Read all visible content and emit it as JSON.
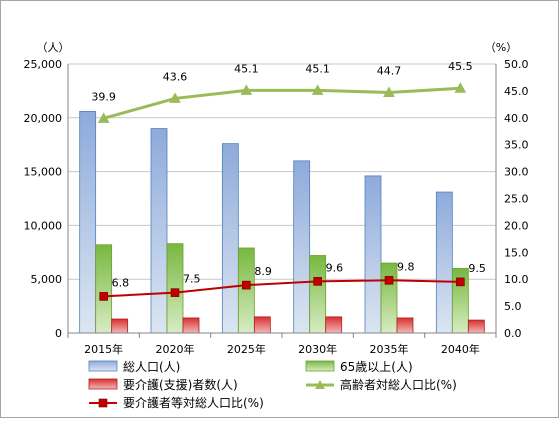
{
  "chart_data": {
    "type": "bar",
    "categories": [
      "2015年",
      "2020年",
      "2025年",
      "2030年",
      "2035年",
      "2040年"
    ],
    "left_axis": {
      "unit": "（人）",
      "ylim": [
        0,
        25000
      ],
      "ticks": [
        "0",
        "5,000",
        "10,000",
        "15,000",
        "20,000",
        "25,000"
      ],
      "tick_values": [
        0,
        5000,
        10000,
        15000,
        20000,
        25000
      ]
    },
    "right_axis": {
      "unit": "（%）",
      "ylim": [
        0,
        50
      ],
      "ticks": [
        "0.0",
        "5.0",
        "10.0",
        "15.0",
        "20.0",
        "25.0",
        "30.0",
        "35.0",
        "40.0",
        "45.0",
        "50.0"
      ],
      "tick_values": [
        0,
        5,
        10,
        15,
        20,
        25,
        30,
        35,
        40,
        45,
        50
      ]
    },
    "grid": true,
    "legend_position": "bottom",
    "series": [
      {
        "name": "総人口(人)",
        "type": "bar",
        "axis": "left",
        "color": "#95b3d7",
        "values": [
          20600,
          19000,
          17600,
          16000,
          14600,
          13100
        ]
      },
      {
        "name": "65歳以上(人)",
        "type": "bar",
        "axis": "left",
        "color": "#92d050",
        "values": [
          8200,
          8300,
          7900,
          7200,
          6500,
          6000
        ]
      },
      {
        "name": "要介護(支援)者数(人)",
        "type": "bar",
        "axis": "left",
        "color": "#e46c6c",
        "values": [
          1300,
          1400,
          1500,
          1500,
          1400,
          1200
        ]
      },
      {
        "name": "高齢者対総人口比(%)",
        "type": "line",
        "axis": "right",
        "color": "#9bbb59",
        "marker": "triangle",
        "values": [
          39.9,
          43.6,
          45.1,
          45.1,
          44.7,
          45.5
        ],
        "labels": [
          "39.9",
          "43.6",
          "45.1",
          "45.1",
          "44.7",
          "45.5"
        ]
      },
      {
        "name": "要介護者等対総人口比(%)",
        "type": "line",
        "axis": "right",
        "color": "#c00000",
        "marker": "square",
        "values": [
          6.8,
          7.5,
          8.9,
          9.6,
          9.8,
          9.5
        ],
        "labels": [
          "6.8",
          "7.5",
          "8.9",
          "9.6",
          "9.8",
          "9.5"
        ]
      }
    ]
  }
}
